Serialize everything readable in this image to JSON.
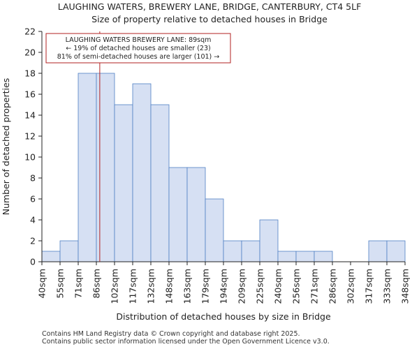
{
  "title_line1": "LAUGHING WATERS, BREWERY LANE, BRIDGE, CANTERBURY, CT4 5LF",
  "title_line2": "Size of property relative to detached houses in Bridge",
  "footer_line1": "Contains HM Land Registry data © Crown copyright and database right 2025.",
  "footer_line2": "Contains public sector information licensed under the Open Government Licence v3.0.",
  "chart_data": {
    "type": "bar",
    "xlabel": "Distribution of detached houses by size in Bridge",
    "ylabel": "Number of detached properties",
    "ylim": [
      0,
      22
    ],
    "yticks": [
      0,
      2,
      4,
      6,
      8,
      10,
      12,
      14,
      16,
      18,
      20,
      22
    ],
    "bin_edges": [
      40,
      55,
      71,
      86,
      102,
      117,
      132,
      148,
      163,
      179,
      194,
      209,
      225,
      240,
      256,
      271,
      286,
      302,
      317,
      333,
      348
    ],
    "tick_labels": [
      "40sqm",
      "55sqm",
      "71sqm",
      "86sqm",
      "102sqm",
      "117sqm",
      "132sqm",
      "148sqm",
      "163sqm",
      "179sqm",
      "194sqm",
      "209sqm",
      "225sqm",
      "240sqm",
      "256sqm",
      "271sqm",
      "286sqm",
      "302sqm",
      "317sqm",
      "333sqm",
      "348sqm"
    ],
    "values": [
      1,
      2,
      18,
      18,
      15,
      17,
      15,
      9,
      9,
      6,
      2,
      2,
      4,
      1,
      1,
      1,
      0,
      0,
      2,
      2
    ],
    "bar_color": "#d6e0f3",
    "bar_edge_color": "#4f7fc4",
    "marker_value": 89,
    "marker_color": "#b22222",
    "annotation": {
      "line1": "LAUGHING WATERS BREWERY LANE: 89sqm",
      "line2": "← 19% of detached houses are smaller (23)",
      "line3": "81% of semi-detached houses are larger (101) →"
    },
    "grid": false
  }
}
